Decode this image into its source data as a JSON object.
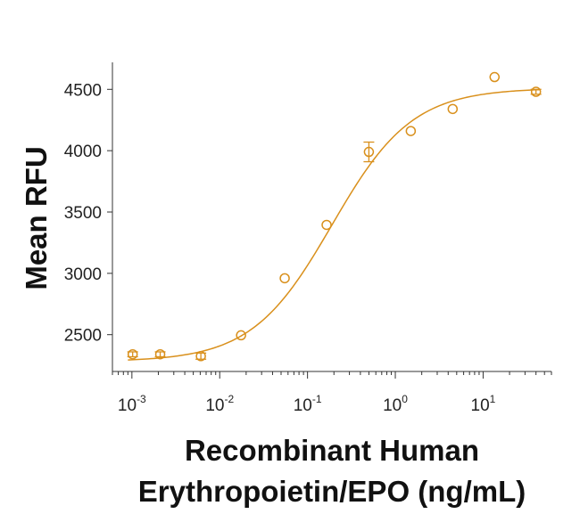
{
  "chart_data": {
    "type": "scatter",
    "title": "",
    "xlabel_lines": [
      "Recombinant Human",
      "Erythropoietin/EPO (ng/mL)"
    ],
    "ylabel": "Mean RFU",
    "x_scale": "log",
    "xlim": [
      0.0006,
      60
    ],
    "ylim": [
      2200,
      4720
    ],
    "x_ticks": [
      {
        "value": 0.001,
        "base": "10",
        "exp": "-3"
      },
      {
        "value": 0.01,
        "base": "10",
        "exp": "-2"
      },
      {
        "value": 0.1,
        "base": "10",
        "exp": "-1"
      },
      {
        "value": 1,
        "base": "10",
        "exp": "0"
      },
      {
        "value": 10,
        "base": "10",
        "exp": "1"
      }
    ],
    "y_ticks": [
      2500,
      3000,
      3500,
      4000,
      4500
    ],
    "grid": false,
    "color": "#d9901c",
    "series": [
      {
        "points": [
          {
            "x": 0.00102,
            "y": 2340,
            "err": 20
          },
          {
            "x": 0.0021,
            "y": 2340,
            "err": 20
          },
          {
            "x": 0.0061,
            "y": 2325,
            "err": 25
          },
          {
            "x": 0.0175,
            "y": 2495,
            "err": 0
          },
          {
            "x": 0.055,
            "y": 2960,
            "err": 0
          },
          {
            "x": 0.165,
            "y": 3395,
            "err": 0
          },
          {
            "x": 0.5,
            "y": 3990,
            "err": 80
          },
          {
            "x": 1.5,
            "y": 4160,
            "err": 0
          },
          {
            "x": 4.5,
            "y": 4340,
            "err": 0
          },
          {
            "x": 13.5,
            "y": 4600,
            "err": 0
          },
          {
            "x": 40,
            "y": 4480,
            "err": 20
          }
        ],
        "fit": {
          "bottom": 2280,
          "top": 4510,
          "ec50": 0.19,
          "hill": 0.95
        }
      }
    ]
  }
}
